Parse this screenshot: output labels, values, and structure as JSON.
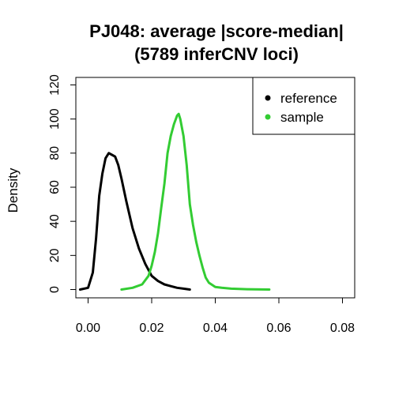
{
  "chart_data": {
    "type": "line",
    "title_line1": "PJ048: average |score-median|",
    "title_line2": "(5789 inferCNV loci)",
    "xlabel": "",
    "ylabel": "Density",
    "xlim": [
      0,
      0.08
    ],
    "ylim": [
      0,
      120
    ],
    "x_ticks": [
      0.0,
      0.02,
      0.04,
      0.06,
      0.08
    ],
    "x_tick_labels": [
      "0.00",
      "0.02",
      "0.04",
      "0.06",
      "0.08"
    ],
    "y_ticks": [
      0,
      20,
      40,
      60,
      80,
      100,
      120
    ],
    "y_tick_labels": [
      "0",
      "20",
      "40",
      "60",
      "80",
      "100",
      "120"
    ],
    "legend_position": "top-right",
    "series": [
      {
        "name": "reference",
        "color": "#000000",
        "x": [
          -0.0025,
          0.0,
          0.0015,
          0.0025,
          0.0035,
          0.0045,
          0.0055,
          0.0065,
          0.0075,
          0.0085,
          0.0095,
          0.0105,
          0.012,
          0.014,
          0.016,
          0.018,
          0.02,
          0.022,
          0.024,
          0.026,
          0.028,
          0.03,
          0.032
        ],
        "y": [
          0,
          1,
          10,
          30,
          55,
          68,
          77,
          80,
          79,
          78,
          73,
          65,
          52,
          36,
          24,
          15,
          8,
          5,
          3,
          2,
          1,
          0.5,
          0
        ]
      },
      {
        "name": "sample",
        "color": "#33cc33",
        "x": [
          0.0105,
          0.014,
          0.017,
          0.019,
          0.02,
          0.021,
          0.022,
          0.023,
          0.024,
          0.025,
          0.026,
          0.027,
          0.028,
          0.0285,
          0.029,
          0.03,
          0.031,
          0.032,
          0.033,
          0.034,
          0.035,
          0.036,
          0.037,
          0.038,
          0.04,
          0.042,
          0.045,
          0.05,
          0.057
        ],
        "y": [
          0,
          1,
          3,
          8,
          14,
          22,
          33,
          48,
          62,
          80,
          90,
          97,
          102,
          103,
          100,
          90,
          73,
          50,
          38,
          28,
          20,
          13,
          7,
          4,
          1.5,
          1,
          0.5,
          0.2,
          0
        ]
      }
    ]
  }
}
